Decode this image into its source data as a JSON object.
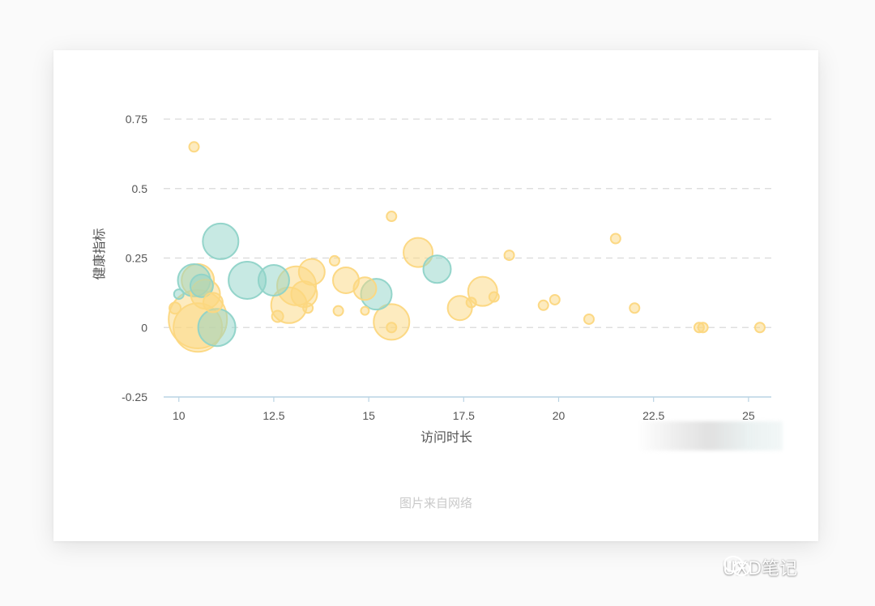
{
  "chart_data": {
    "type": "scatter",
    "xlabel": "访问时长",
    "ylabel": "健康指标",
    "xlim": [
      9.6,
      25.6
    ],
    "ylim": [
      -0.25,
      0.75
    ],
    "x_ticks": [
      "10",
      "12.5",
      "15",
      "17.5",
      "20",
      "22.5",
      "25"
    ],
    "y_ticks": [
      "0.75",
      "0.5",
      "0.25",
      "0",
      "-0.25"
    ],
    "grid": "horizontal-dashed",
    "colors": {
      "yellow": "#fcd77f",
      "teal": "#8fd3c8"
    },
    "series": [
      {
        "color": "yellow",
        "points": [
          {
            "x": 10.4,
            "y": 0.65,
            "size": 6
          },
          {
            "x": 9.9,
            "y": 0.07,
            "size": 7
          },
          {
            "x": 10.5,
            "y": 0.03,
            "size": 36
          },
          {
            "x": 10.5,
            "y": 0.0,
            "size": 30
          },
          {
            "x": 10.5,
            "y": 0.17,
            "size": 20
          },
          {
            "x": 10.7,
            "y": 0.12,
            "size": 18
          },
          {
            "x": 10.9,
            "y": 0.09,
            "size": 12
          },
          {
            "x": 12.6,
            "y": 0.04,
            "size": 7
          },
          {
            "x": 12.9,
            "y": 0.08,
            "size": 22
          },
          {
            "x": 13.1,
            "y": 0.15,
            "size": 24
          },
          {
            "x": 13.3,
            "y": 0.12,
            "size": 16
          },
          {
            "x": 13.5,
            "y": 0.2,
            "size": 16
          },
          {
            "x": 13.4,
            "y": 0.07,
            "size": 6
          },
          {
            "x": 14.1,
            "y": 0.24,
            "size": 6
          },
          {
            "x": 14.2,
            "y": 0.06,
            "size": 6
          },
          {
            "x": 14.4,
            "y": 0.17,
            "size": 16
          },
          {
            "x": 14.9,
            "y": 0.14,
            "size": 14
          },
          {
            "x": 14.9,
            "y": 0.06,
            "size": 5
          },
          {
            "x": 15.6,
            "y": 0.4,
            "size": 6
          },
          {
            "x": 15.6,
            "y": 0.02,
            "size": 22
          },
          {
            "x": 15.6,
            "y": 0.0,
            "size": 6
          },
          {
            "x": 16.3,
            "y": 0.27,
            "size": 18
          },
          {
            "x": 17.4,
            "y": 0.07,
            "size": 15
          },
          {
            "x": 17.7,
            "y": 0.09,
            "size": 6
          },
          {
            "x": 18.0,
            "y": 0.13,
            "size": 18
          },
          {
            "x": 18.3,
            "y": 0.11,
            "size": 6
          },
          {
            "x": 18.7,
            "y": 0.26,
            "size": 6
          },
          {
            "x": 19.6,
            "y": 0.08,
            "size": 6
          },
          {
            "x": 19.9,
            "y": 0.1,
            "size": 6
          },
          {
            "x": 20.8,
            "y": 0.03,
            "size": 6
          },
          {
            "x": 21.5,
            "y": 0.32,
            "size": 6
          },
          {
            "x": 22.0,
            "y": 0.07,
            "size": 6
          },
          {
            "x": 23.7,
            "y": 0.0,
            "size": 6
          },
          {
            "x": 23.8,
            "y": 0.0,
            "size": 6
          },
          {
            "x": 25.3,
            "y": 0.0,
            "size": 6
          }
        ]
      },
      {
        "color": "teal",
        "points": [
          {
            "x": 10.0,
            "y": 0.12,
            "size": 6
          },
          {
            "x": 10.4,
            "y": 0.17,
            "size": 20
          },
          {
            "x": 10.6,
            "y": 0.15,
            "size": 14
          },
          {
            "x": 11.0,
            "y": 0.0,
            "size": 23
          },
          {
            "x": 11.1,
            "y": 0.31,
            "size": 22
          },
          {
            "x": 11.8,
            "y": 0.17,
            "size": 23
          },
          {
            "x": 12.5,
            "y": 0.17,
            "size": 19
          },
          {
            "x": 15.2,
            "y": 0.12,
            "size": 19
          },
          {
            "x": 16.8,
            "y": 0.21,
            "size": 17
          }
        ]
      }
    ]
  },
  "caption": "图片来自网络",
  "watermark": {
    "icon": "wechat-icon",
    "text": "UXD笔记"
  }
}
